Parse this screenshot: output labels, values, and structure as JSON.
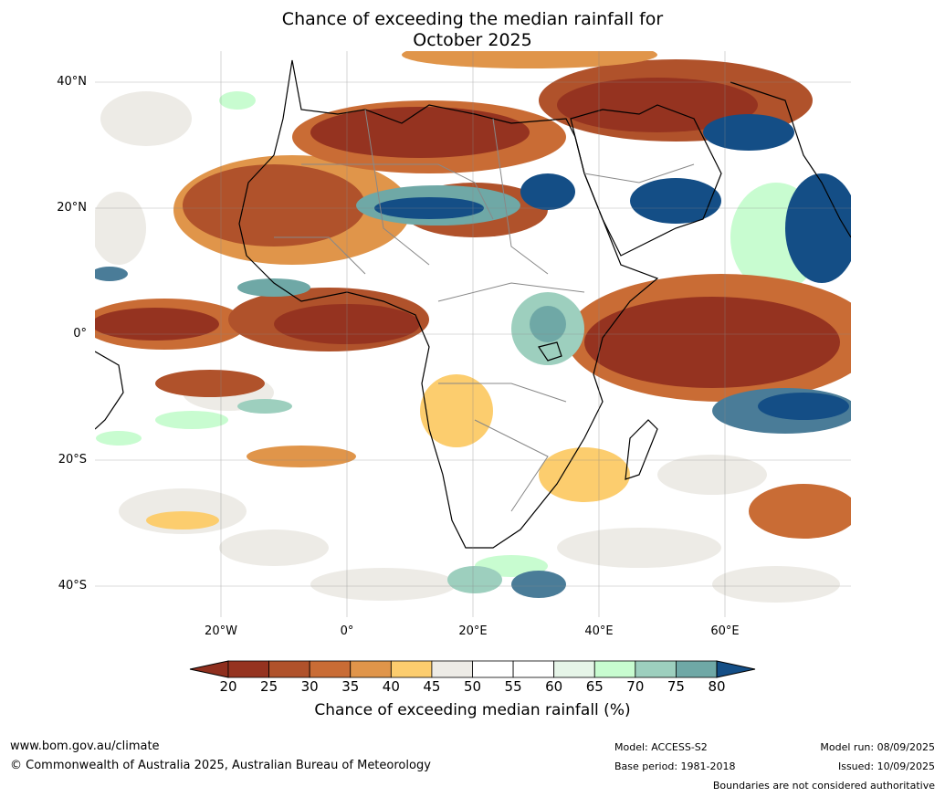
{
  "title_line1": "Chance of exceeding the median rainfall for",
  "title_line2": "October 2025",
  "lat_labels": [
    "40°N",
    "20°N",
    "0°",
    "20°S",
    "40°S"
  ],
  "lon_labels": [
    "20°W",
    "0°",
    "20°E",
    "40°E",
    "60°E"
  ],
  "colorbar": {
    "title": "Chance of exceeding median rainfall (%)",
    "ticks": [
      "20",
      "25",
      "30",
      "35",
      "40",
      "45",
      "50",
      "55",
      "60",
      "65",
      "70",
      "75",
      "80"
    ],
    "colors": [
      "#953320",
      "#b0522b",
      "#c96c35",
      "#e0954a",
      "#fccd6e",
      "#edebe6",
      "#ffffff",
      "#ffffff",
      "#e6f5e8",
      "#c8fcd0",
      "#9dcfbe",
      "#6fa8a6",
      "#4a7c98"
    ],
    "under_color": "#8f2f1e",
    "over_color": "#144e86"
  },
  "footer": {
    "website": "www.bom.gov.au/climate",
    "copyright": "© Commonwealth of Australia 2025, Australian Bureau of Meteorology",
    "model": "Model: ACCESS-S2",
    "base_period": "Base period: 1981-2018",
    "model_run": "Model run: 08/09/2025",
    "issued": "Issued: 10/09/2025",
    "disclaimer": "Boundaries are not considered authoritative"
  }
}
